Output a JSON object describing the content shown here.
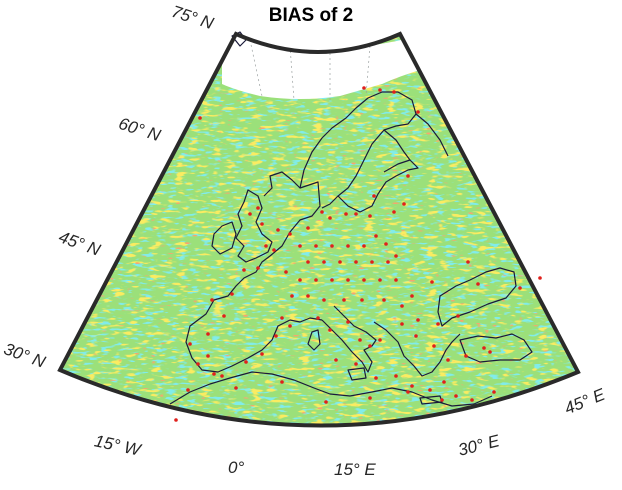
{
  "title": "BIAS of 2",
  "latitude_labels": [
    "75° N",
    "60° N",
    "45° N",
    "30° N"
  ],
  "longitude_labels": [
    "15° W",
    "0°",
    "15° E",
    "30° E",
    "45° E"
  ],
  "colors": {
    "background_field": "#9be07a",
    "cool_streaks": "#37d6d0",
    "warm_streaks": "#f2d21c",
    "hot_spots": "#e8622a",
    "coastline": "#1a1a3a",
    "stations": "#e0201c",
    "frame": "#2a2a2a",
    "ice_area": "#ffffff"
  }
}
